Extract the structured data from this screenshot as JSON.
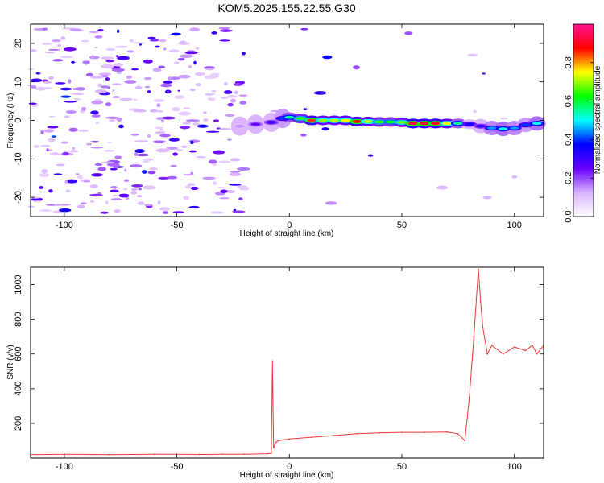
{
  "title": "KOM5.2025.155.22.55.G30",
  "chart_data": [
    {
      "type": "heatmap",
      "xlabel": "Height of straight line (km)",
      "ylabel": "Frequency (Hz)",
      "xlim": [
        -115,
        113
      ],
      "ylim": [
        -25,
        25
      ],
      "xticks": [
        -100,
        -50,
        0,
        50,
        100
      ],
      "yticks": [
        -20,
        -10,
        0,
        10,
        20
      ],
      "colorbar": {
        "label": "Normalized spectral amplitude",
        "range": [
          0,
          1
        ],
        "ticks": [
          0.0,
          0.2,
          0.4,
          0.6,
          0.8
        ],
        "tick_labels": [
          "0.0",
          "0.2",
          "0.4",
          "0.6",
          "0.8"
        ],
        "colormap": [
          "#ffffff",
          "#d9b3ff",
          "#6600ff",
          "#0000ff",
          "#00ffff",
          "#00ff00",
          "#ffff00",
          "#ff0000",
          "#ff1493"
        ]
      },
      "ridge": [
        {
          "x": -22,
          "freq": -1.5,
          "amp": 0.15
        },
        {
          "x": -15,
          "freq": -1.0,
          "amp": 0.25
        },
        {
          "x": -8,
          "freq": -0.5,
          "amp": 0.3
        },
        {
          "x": -3,
          "freq": 0.5,
          "amp": 0.4
        },
        {
          "x": 0,
          "freq": 0.8,
          "amp": 0.55
        },
        {
          "x": 5,
          "freq": 0.5,
          "amp": 0.65
        },
        {
          "x": 10,
          "freq": 0.0,
          "amp": 0.85
        },
        {
          "x": 15,
          "freq": 0.0,
          "amp": 0.7
        },
        {
          "x": 20,
          "freq": 0.0,
          "amp": 0.72
        },
        {
          "x": 25,
          "freq": 0.0,
          "amp": 0.75
        },
        {
          "x": 30,
          "freq": -0.3,
          "amp": 0.88
        },
        {
          "x": 35,
          "freq": -0.3,
          "amp": 0.72
        },
        {
          "x": 40,
          "freq": -0.4,
          "amp": 0.65
        },
        {
          "x": 45,
          "freq": -0.4,
          "amp": 0.62
        },
        {
          "x": 50,
          "freq": -0.5,
          "amp": 0.68
        },
        {
          "x": 55,
          "freq": -0.8,
          "amp": 0.92
        },
        {
          "x": 60,
          "freq": -0.8,
          "amp": 0.9
        },
        {
          "x": 65,
          "freq": -0.8,
          "amp": 0.9
        },
        {
          "x": 70,
          "freq": -0.8,
          "amp": 0.75
        },
        {
          "x": 75,
          "freq": -0.8,
          "amp": 0.55
        },
        {
          "x": 80,
          "freq": -1.0,
          "amp": 0.35
        },
        {
          "x": 85,
          "freq": -1.5,
          "amp": 0.3
        },
        {
          "x": 90,
          "freq": -2.0,
          "amp": 0.45
        },
        {
          "x": 95,
          "freq": -2.2,
          "amp": 0.5
        },
        {
          "x": 100,
          "freq": -2.0,
          "amp": 0.45
        },
        {
          "x": 105,
          "freq": -1.2,
          "amp": 0.4
        },
        {
          "x": 110,
          "freq": -0.8,
          "amp": 0.5
        }
      ]
    },
    {
      "type": "line",
      "xlabel": "Height of straight line (km)",
      "ylabel": "SNR (v/v)",
      "xlim": [
        -115,
        113
      ],
      "ylim": [
        0,
        1100
      ],
      "xticks": [
        -100,
        -50,
        0,
        50,
        100
      ],
      "yticks": [
        200,
        400,
        600,
        800,
        1000
      ],
      "color": "#e8383b",
      "series": [
        {
          "x": [
            -115,
            -100,
            -80,
            -60,
            -50,
            -40,
            -30,
            -20,
            -10,
            -8,
            -7.5,
            -7,
            -6,
            -5,
            0,
            10,
            20,
            30,
            40,
            50,
            60,
            70,
            75,
            78,
            80,
            82,
            84,
            85,
            86,
            88,
            90,
            95,
            100,
            105,
            108,
            110,
            113
          ],
          "y": [
            20,
            22,
            20,
            22,
            22,
            21,
            22,
            22,
            25,
            28,
            560,
            60,
            90,
            100,
            110,
            120,
            130,
            140,
            145,
            148,
            148,
            150,
            140,
            100,
            350,
            700,
            1090,
            900,
            750,
            600,
            650,
            600,
            640,
            620,
            650,
            600,
            650
          ]
        }
      ]
    }
  ]
}
